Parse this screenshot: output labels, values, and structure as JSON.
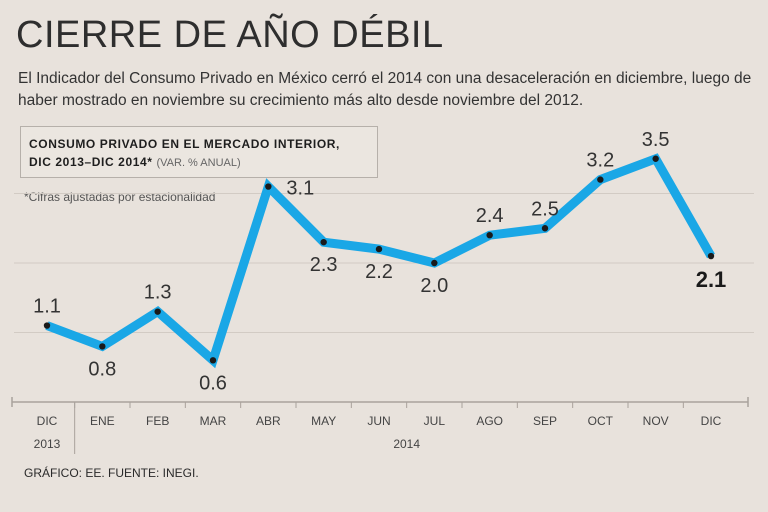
{
  "header": {
    "title": "CIERRE DE AÑO DÉBIL",
    "subtitle": "El Indicador del Consumo Privado en México cerró el 2014 con una desaceleración en diciembre, luego de haber mostrado en noviembre su crecimiento más alto desde noviembre del 2012."
  },
  "legend": {
    "line1": "CONSUMO PRIVADO EN EL MERCADO INTERIOR,",
    "line2": "DIC 2013–DIC 2014*",
    "note": "(VAR. % ANUAL)"
  },
  "footnote": "*Cifras ajustadas por estacionalidad",
  "source": "GRÁFICO: EE. FUENTE: INEGI.",
  "colors": {
    "line": "#1aa7e6",
    "marker": "#1a1a1a",
    "grid": "#d2cbc4",
    "axis": "#a9a29c",
    "background": "#e8e2dc"
  },
  "chart_data": {
    "type": "line",
    "title": "CONSUMO PRIVADO EN EL MERCADO INTERIOR, DIC 2013–DIC 2014*",
    "ylabel": "VAR. % ANUAL",
    "categories": [
      "DIC",
      "ENE",
      "FEB",
      "MAR",
      "ABR",
      "MAY",
      "JUN",
      "JUL",
      "AGO",
      "SEP",
      "OCT",
      "NOV",
      "DIC"
    ],
    "values": [
      1.1,
      0.8,
      1.3,
      0.6,
      3.1,
      2.3,
      2.2,
      2.0,
      2.4,
      2.5,
      3.2,
      3.5,
      2.1
    ],
    "value_labels": [
      "1.1",
      "0.8",
      "1.3",
      "0.6",
      "3.1",
      "2.3",
      "2.2",
      "2.0",
      "2.4",
      "2.5",
      "3.2",
      "3.5",
      "2.1"
    ],
    "label_position": [
      "above",
      "below",
      "above",
      "below",
      "right",
      "below",
      "below",
      "below",
      "above",
      "above",
      "above",
      "above",
      "below"
    ],
    "year_labels": [
      {
        "text": "2013",
        "from": 0,
        "to": 0
      },
      {
        "text": "2014",
        "from": 1,
        "to": 12
      }
    ],
    "ylim": [
      0,
      4
    ],
    "grid": true
  }
}
